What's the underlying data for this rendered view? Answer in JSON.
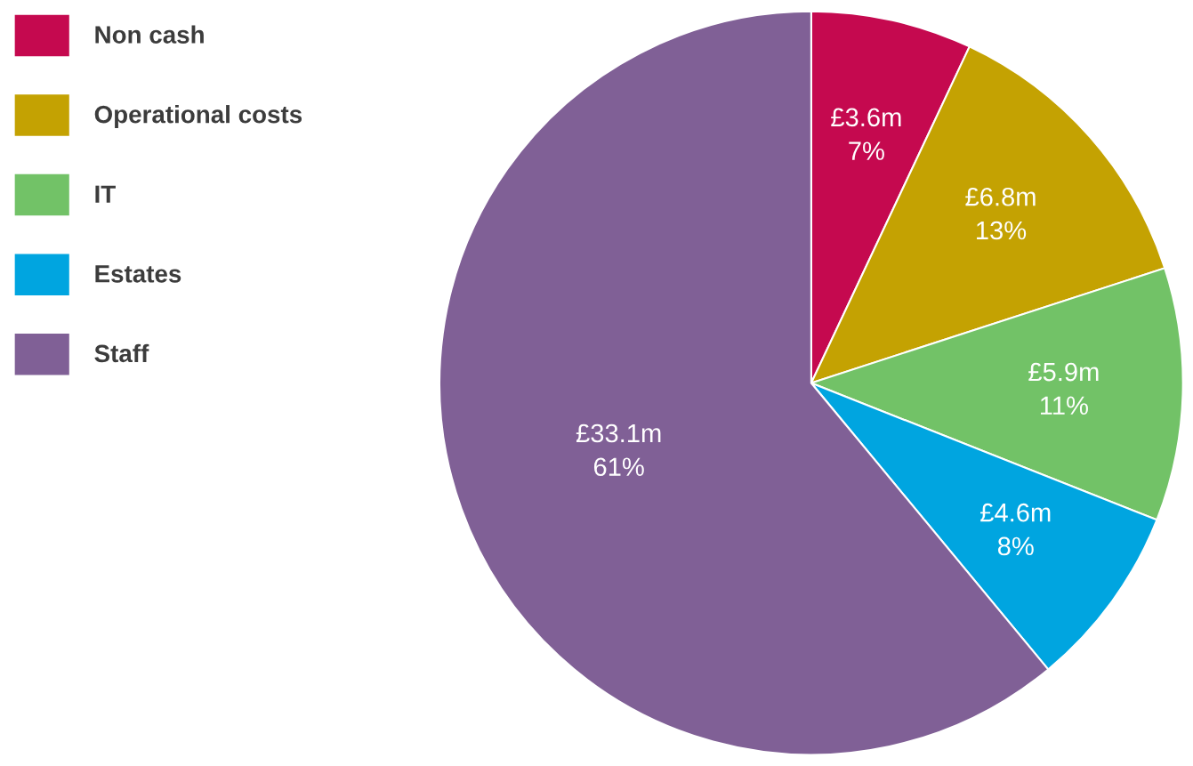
{
  "chart_data": {
    "type": "pie",
    "categories": [
      "Non cash",
      "Operational costs",
      "IT",
      "Estates",
      "Staff"
    ],
    "values": [
      7,
      13,
      11,
      8,
      61
    ],
    "value_labels": [
      "£3.6m\n7%",
      "£6.8m\n13%",
      "£5.9m\n11%",
      "£4.6m\n8%",
      "£33.1m\n61%"
    ],
    "colors": [
      "#c5094f",
      "#c4a202",
      "#72c267",
      "#00a5e0",
      "#806096"
    ],
    "legend": "top left"
  }
}
